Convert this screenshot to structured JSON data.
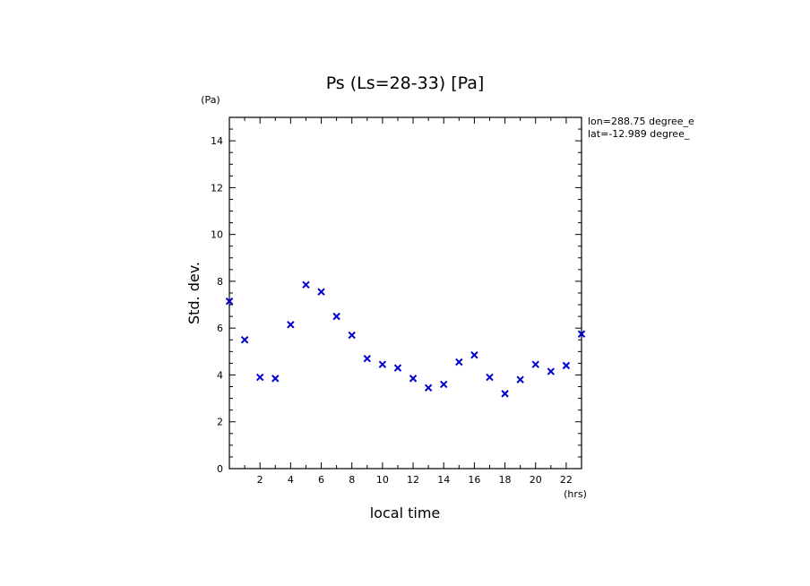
{
  "chart_data": {
    "type": "scatter",
    "title": "Ps (Ls=28-33) [Pa]",
    "xlabel": "local time",
    "ylabel": "Std. dev.",
    "x_unit": "(hrs)",
    "y_unit": "(Pa)",
    "xlim": [
      0,
      23
    ],
    "ylim": [
      0,
      15
    ],
    "x_major_ticks": [
      2,
      4,
      6,
      8,
      10,
      12,
      14,
      16,
      18,
      20,
      22
    ],
    "x_tick_labels": [
      "2",
      "4",
      "6",
      "8",
      "10",
      "12",
      "14",
      "16",
      "18",
      "20",
      "22"
    ],
    "y_major_ticks": [
      0,
      2,
      4,
      6,
      8,
      10,
      12,
      14
    ],
    "y_tick_labels": [
      "0",
      "2",
      "4",
      "6",
      "8",
      "10",
      "12",
      "14"
    ],
    "grid": false,
    "marker": "x",
    "marker_color": "#0000cc",
    "annotations": [
      "lon=288.75 degree_e",
      "lat=-12.989 degree_"
    ],
    "series": [
      {
        "name": "Std. dev.",
        "x": [
          0.0,
          1.0,
          2.0,
          3.0,
          4.0,
          5.0,
          6.0,
          7.0,
          8.0,
          9.0,
          10.0,
          11.0,
          12.0,
          13.0,
          14.0,
          15.0,
          16.0,
          17.0,
          18.0,
          19.0,
          20.0,
          21.0,
          22.0,
          23.0
        ],
        "y": [
          7.15,
          5.5,
          3.9,
          3.85,
          6.15,
          7.85,
          7.55,
          6.5,
          5.7,
          4.7,
          4.45,
          4.3,
          3.85,
          3.45,
          3.6,
          4.55,
          4.85,
          3.9,
          3.2,
          3.8,
          4.45,
          4.15,
          4.4,
          5.75
        ]
      }
    ]
  }
}
